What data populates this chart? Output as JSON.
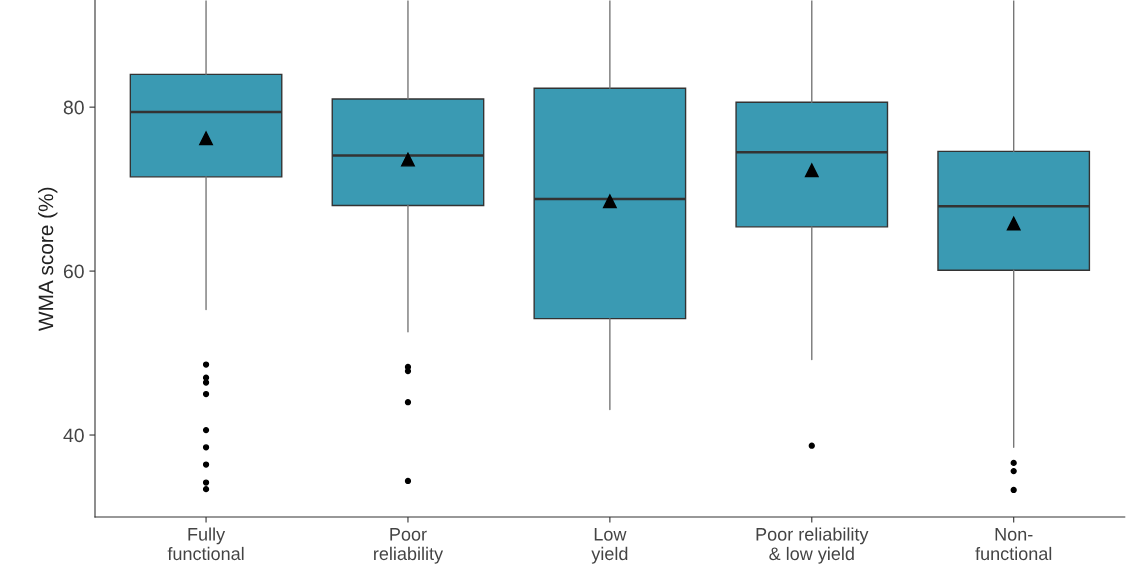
{
  "chart_data": {
    "type": "box",
    "ylabel": "WMA score (%)",
    "categories": [
      "Fully\nfunctional",
      "Poor\nreliability",
      "Low\nyield",
      "Poor reliability\n& low yield",
      "Non-\nfunctional"
    ],
    "boxes": [
      {
        "low": 55.3,
        "q1": 71.5,
        "median": 79.4,
        "q3": 84.0,
        "high": 93,
        "mean": 76.2,
        "outliers": [
          48.6,
          47.0,
          46.4,
          45.0,
          40.6,
          38.5,
          36.4,
          34.2,
          33.4
        ]
      },
      {
        "low": 52.6,
        "q1": 68.0,
        "median": 74.1,
        "q3": 81.0,
        "high": 93,
        "mean": 73.6,
        "outliers": [
          48.3,
          47.8,
          44.0,
          34.4
        ]
      },
      {
        "low": 43.1,
        "q1": 54.2,
        "median": 68.8,
        "q3": 82.3,
        "high": 93,
        "mean": 68.5
      },
      {
        "low": 49.2,
        "q1": 65.4,
        "median": 74.5,
        "q3": 80.6,
        "high": 93,
        "mean": 72.3,
        "outliers": [
          38.7
        ]
      },
      {
        "low": 38.5,
        "q1": 60.1,
        "median": 67.9,
        "q3": 74.6,
        "high": 93,
        "mean": 65.8,
        "outliers": [
          36.6,
          35.6,
          33.3
        ]
      }
    ],
    "color": "#3a9ab3",
    "marker": "triangle",
    "ylim": [
      30,
      93
    ],
    "yticks": [
      40,
      60,
      80
    ],
    "grid": false
  }
}
